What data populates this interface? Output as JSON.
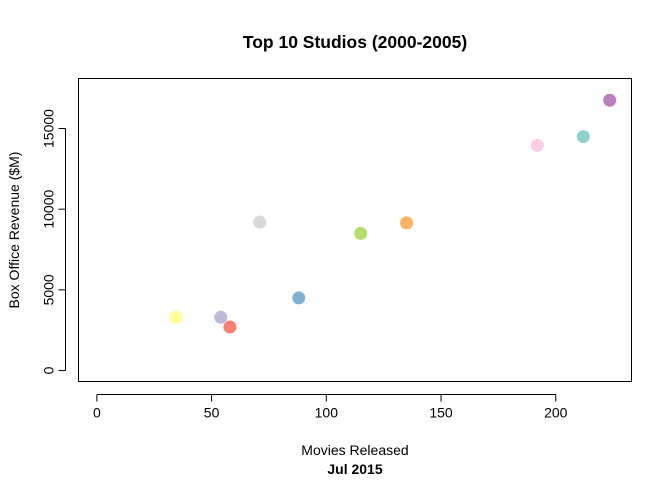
{
  "chart_data": {
    "type": "scatter",
    "title": "Top 10 Studios (2000-2005)",
    "xlabel": "Movies Released",
    "ylabel": "Box Office Revenue ($M)",
    "subtitle": "Jul 2015",
    "xlim": [
      -8,
      233
    ],
    "ylim": [
      -680,
      18100
    ],
    "xticks": [
      0,
      50,
      100,
      150,
      200
    ],
    "yticks": [
      0,
      5000,
      10000,
      15000
    ],
    "grid": false,
    "legend": "none",
    "points": [
      {
        "x": 34.5,
        "y": 3300,
        "color": "#FFFF99"
      },
      {
        "x": 54,
        "y": 3300,
        "color": "#BEBADA"
      },
      {
        "x": 58,
        "y": 2700,
        "color": "#FB8072"
      },
      {
        "x": 71,
        "y": 9200,
        "color": "#D9D9D9"
      },
      {
        "x": 88,
        "y": 4500,
        "color": "#80B1D3"
      },
      {
        "x": 115,
        "y": 8500,
        "color": "#B3DE69"
      },
      {
        "x": 135,
        "y": 9150,
        "color": "#FDB462"
      },
      {
        "x": 192,
        "y": 13950,
        "color": "#FCCDE5"
      },
      {
        "x": 212,
        "y": 14500,
        "color": "#8DD3C7"
      },
      {
        "x": 223.5,
        "y": 16750,
        "color": "#BC80BD"
      }
    ]
  }
}
